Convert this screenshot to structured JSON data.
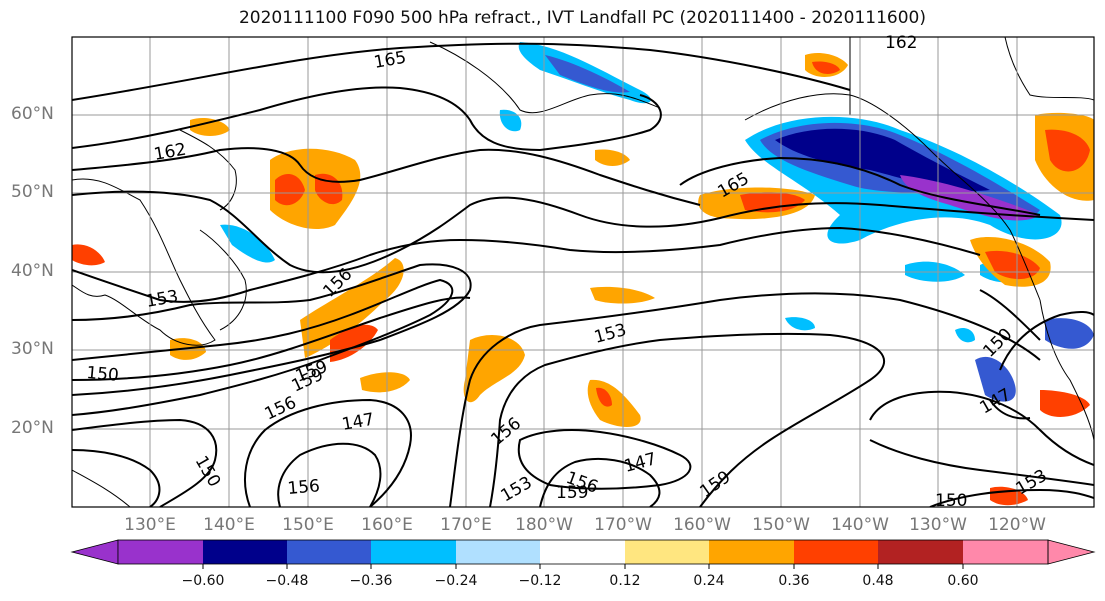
{
  "title": "2020111100 F090 500 hPa refract., IVT Landfall PC (2020111400 - 2020111600)",
  "map": {
    "lat_ticks": [
      "60°N",
      "50°N",
      "40°N",
      "30°N",
      "20°N"
    ],
    "lon_ticks": [
      "130°E",
      "140°E",
      "150°E",
      "160°E",
      "170°E",
      "180°W",
      "170°W",
      "160°W",
      "150°W",
      "140°W",
      "130°W",
      "120°W"
    ],
    "contour_labels": [
      "165",
      "162",
      "162",
      "165",
      "153",
      "156",
      "150",
      "159",
      "156",
      "147",
      "153",
      "156",
      "150",
      "156",
      "153",
      "159",
      "147",
      "159",
      "150",
      "147",
      "150",
      "153",
      "156",
      "159"
    ]
  },
  "colorbar": {
    "tick_labels": [
      "−0.60",
      "−0.48",
      "−0.36",
      "−0.24",
      "−0.12",
      "0.12",
      "0.24",
      "0.36",
      "0.48",
      "0.60"
    ],
    "colors": [
      "#9932cc",
      "#00008b",
      "#3559d1",
      "#00bfff",
      "#b0e0ff",
      "#ffffff",
      "#ffe680",
      "#ffa500",
      "#ff4000",
      "#b22222",
      "#ff88aa"
    ]
  }
}
